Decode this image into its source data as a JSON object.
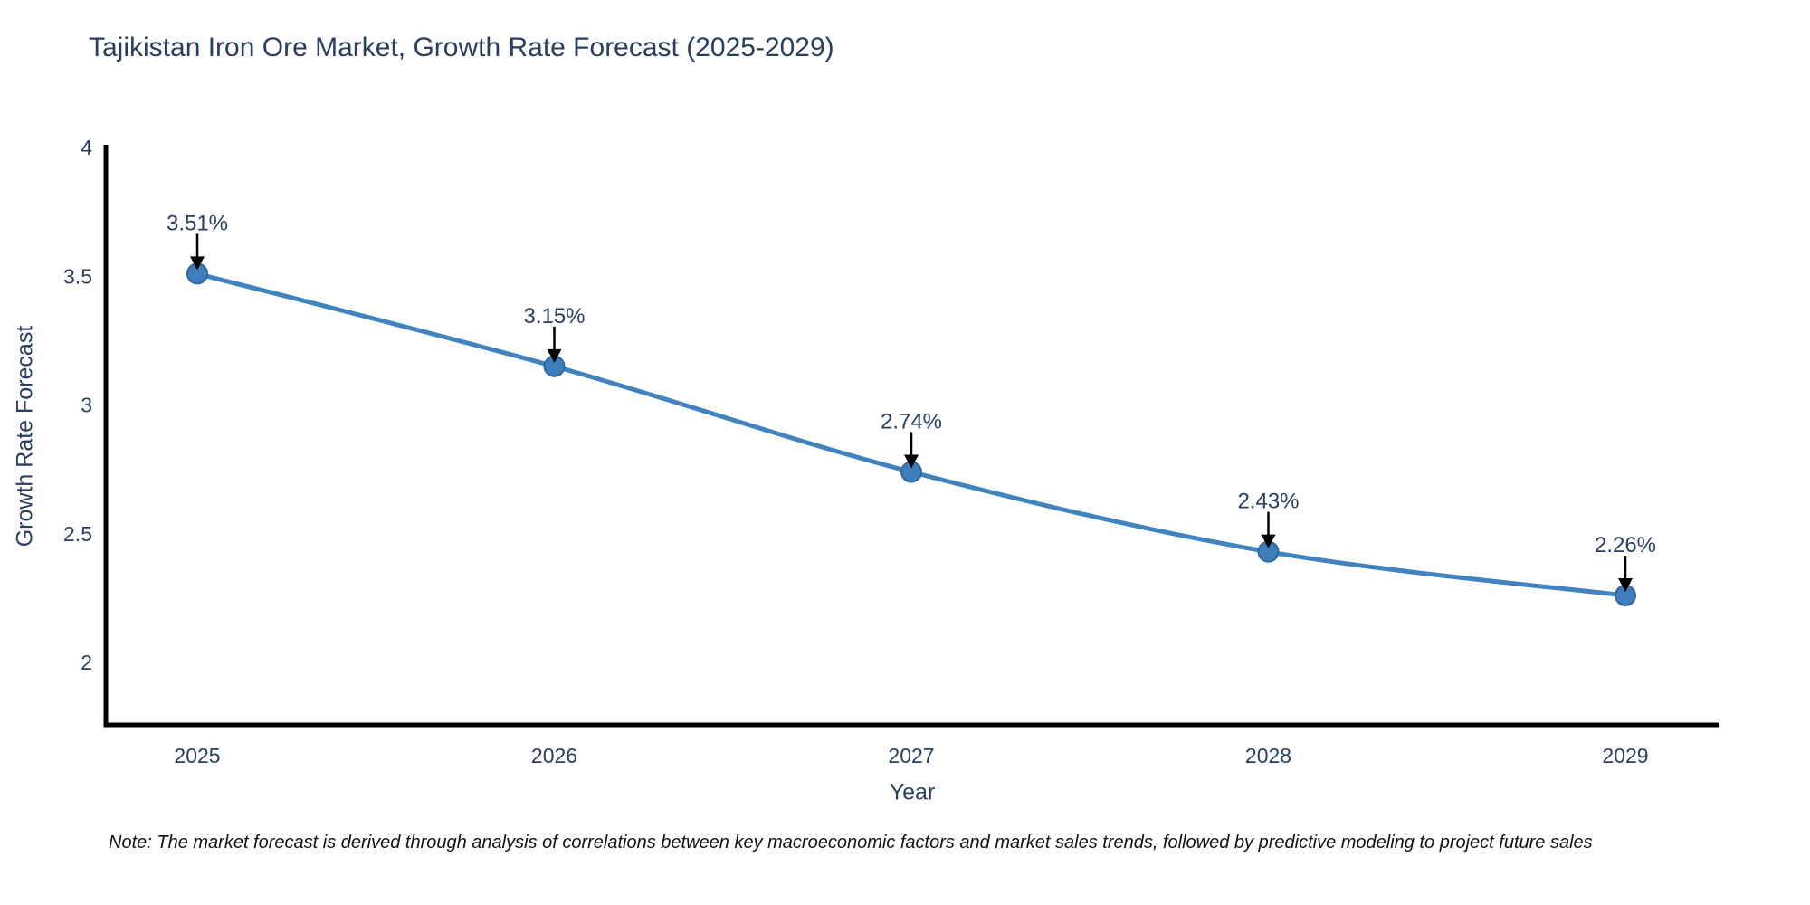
{
  "chart_data": {
    "type": "line",
    "title": "Tajikistan Iron Ore Market, Growth Rate Forecast (2025-2029)",
    "xlabel": "Year",
    "ylabel": "Growth Rate Forecast",
    "x": [
      "2025",
      "2026",
      "2027",
      "2028",
      "2029"
    ],
    "values": [
      3.51,
      3.15,
      2.74,
      2.43,
      2.26
    ],
    "point_labels": [
      "3.51%",
      "3.15%",
      "2.74%",
      "2.43%",
      "2.26%"
    ],
    "y_ticks": [
      "4",
      "3.5",
      "3",
      "2.5",
      "2"
    ],
    "ylim": [
      1.76,
      4.01
    ],
    "xlim": [
      2024.74,
      2029.26
    ],
    "grid": false,
    "legend_position": "none",
    "line_shape": "spline",
    "marker_style": "circle",
    "annotations_have_arrows": true
  },
  "note": {
    "text": "Note: The market forecast is derived through analysis of correlations between key macroeconomic factors and market sales trends, followed by predictive modeling to project future sales"
  },
  "colors": {
    "line": "#4183be",
    "marker_fill": "#3d7ebb",
    "marker_edge": "#31679c",
    "axis_line": "#000000",
    "tick_text": "#2a3f5f",
    "title_text": "#2a3f5f",
    "annotation_text": "#2a3f5f",
    "arrow": "#000000",
    "note_text": "#111111",
    "background": "#ffffff"
  }
}
